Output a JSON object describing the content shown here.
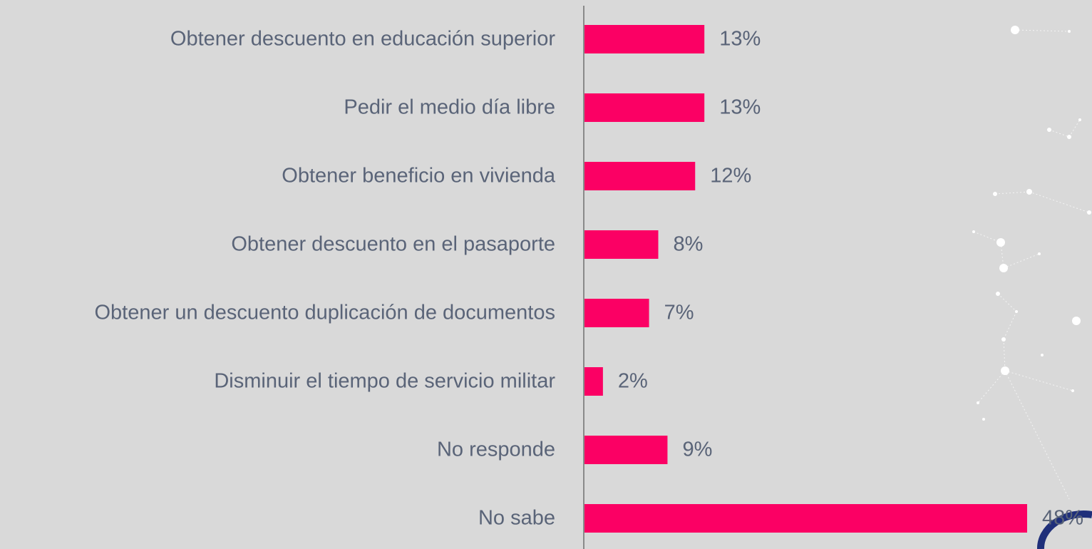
{
  "chart_data": {
    "type": "hbar",
    "categories": [
      "Obtener descuento en educación superior",
      "Pedir el medio día libre",
      "Obtener beneficio en vivienda",
      "Obtener descuento en el pasaporte",
      "Obtener un descuento  duplicación de documentos",
      "Disminuir el tiempo de servicio militar",
      "No responde",
      "No sabe"
    ],
    "values": [
      13,
      13,
      12,
      8,
      7,
      2,
      9,
      48
    ],
    "value_labels": [
      "13%",
      "13%",
      "12%",
      "8%",
      "7%",
      "2%",
      "9%",
      "48%"
    ],
    "color": "#fb0064"
  }
}
